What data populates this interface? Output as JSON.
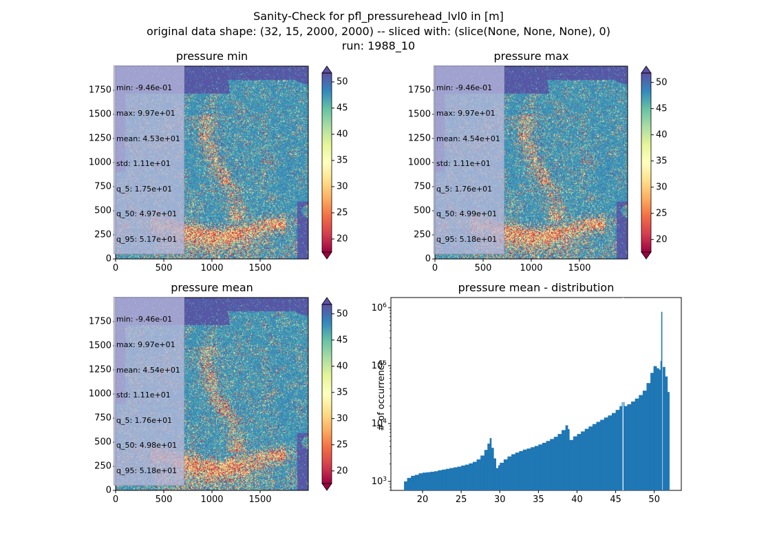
{
  "figure": {
    "title_lines": [
      "Sanity-Check for pfl_pressurehead_lvl0 in [m]",
      "original data shape: (32, 15, 2000, 2000) -- sliced with: (slice(None, None, None), 0)",
      "run: 1988_10"
    ]
  },
  "colors": {
    "hist_bar": "#1f77b4",
    "map_background": "#5e4fa2",
    "colormap": "Spectral"
  },
  "chart_data": [
    {
      "type": "heatmap",
      "title": "pressure min",
      "colormap": "Spectral",
      "clim": [
        17.5,
        51.7
      ],
      "xlim": [
        0,
        2000
      ],
      "ylim": [
        0,
        2000
      ],
      "xticks": [
        "0",
        "500",
        "1000",
        "1500"
      ],
      "yticks": [
        "0",
        "250",
        "500",
        "750",
        "1000",
        "1250",
        "1500",
        "1750"
      ],
      "colorbar_ticks": [
        "20",
        "25",
        "30",
        "35",
        "40",
        "45",
        "50"
      ],
      "stats": [
        "min: -9.46e-01",
        "max: 9.97e+01",
        "mean: 4.53e+01",
        "std: 1.11e+01",
        "q_5: 1.75e+01",
        "q_50: 4.97e+01",
        "q_95: 5.17e+01"
      ]
    },
    {
      "type": "heatmap",
      "title": "pressure max",
      "colormap": "Spectral",
      "clim": [
        17.6,
        51.8
      ],
      "xlim": [
        0,
        2000
      ],
      "ylim": [
        0,
        2000
      ],
      "xticks": [
        "0",
        "500",
        "1000",
        "1500"
      ],
      "yticks": [
        "0",
        "250",
        "500",
        "750",
        "1000",
        "1250",
        "1500",
        "1750"
      ],
      "colorbar_ticks": [
        "20",
        "25",
        "30",
        "35",
        "40",
        "45",
        "50"
      ],
      "stats": [
        "min: -9.46e-01",
        "max: 9.97e+01",
        "mean: 4.54e+01",
        "std: 1.11e+01",
        "q_5: 1.76e+01",
        "q_50: 4.99e+01",
        "q_95: 5.18e+01"
      ]
    },
    {
      "type": "heatmap",
      "title": "pressure mean",
      "colormap": "Spectral",
      "clim": [
        17.6,
        51.8
      ],
      "xlim": [
        0,
        2000
      ],
      "ylim": [
        0,
        2000
      ],
      "xticks": [
        "0",
        "500",
        "1000",
        "1500"
      ],
      "yticks": [
        "0",
        "250",
        "500",
        "750",
        "1000",
        "1250",
        "1500",
        "1750"
      ],
      "colorbar_ticks": [
        "20",
        "25",
        "30",
        "35",
        "40",
        "45",
        "50"
      ],
      "stats": [
        "min: -9.46e-01",
        "max: 9.97e+01",
        "mean: 4.54e+01",
        "std: 1.11e+01",
        "q_5: 1.76e+01",
        "q_50: 4.98e+01",
        "q_95: 5.18e+01"
      ]
    },
    {
      "type": "bar",
      "title": "pressure mean - distribution",
      "ylabel": "# of occurrence",
      "yscale": "log",
      "xlim": [
        15.9,
        53.5
      ],
      "ylim": [
        700,
        1500000
      ],
      "xticks": [
        20,
        25,
        30,
        35,
        40,
        45,
        50
      ],
      "yticks": [
        {
          "value": 1000,
          "label": "10^3"
        },
        {
          "value": 10000,
          "label": "10^4"
        },
        {
          "value": 100000,
          "label": "10^5"
        },
        {
          "value": 1000000,
          "label": "10^6"
        }
      ],
      "bin_width": 0.17,
      "bins": [
        [
          17.6,
          1000
        ],
        [
          18.0,
          1150
        ],
        [
          18.5,
          1250
        ],
        [
          19.0,
          1300
        ],
        [
          19.5,
          1380
        ],
        [
          20.0,
          1420
        ],
        [
          20.5,
          1440
        ],
        [
          21.0,
          1470
        ],
        [
          21.5,
          1500
        ],
        [
          22.0,
          1560
        ],
        [
          22.5,
          1600
        ],
        [
          23.0,
          1650
        ],
        [
          23.5,
          1700
        ],
        [
          24.0,
          1750
        ],
        [
          24.5,
          1800
        ],
        [
          25.0,
          1880
        ],
        [
          25.5,
          1950
        ],
        [
          26.0,
          2050
        ],
        [
          26.5,
          2180
        ],
        [
          27.0,
          2400
        ],
        [
          27.5,
          2800
        ],
        [
          28.0,
          3500
        ],
        [
          28.4,
          4500
        ],
        [
          28.7,
          5600
        ],
        [
          28.9,
          3800
        ],
        [
          29.2,
          2500
        ],
        [
          29.5,
          1700
        ],
        [
          29.8,
          1900
        ],
        [
          30.0,
          2100
        ],
        [
          30.5,
          2400
        ],
        [
          31.0,
          2700
        ],
        [
          31.5,
          2950
        ],
        [
          32.0,
          3150
        ],
        [
          32.5,
          3350
        ],
        [
          33.0,
          3550
        ],
        [
          33.5,
          3700
        ],
        [
          34.0,
          3900
        ],
        [
          34.5,
          4100
        ],
        [
          35.0,
          4350
        ],
        [
          35.5,
          4650
        ],
        [
          36.0,
          5000
        ],
        [
          36.5,
          5400
        ],
        [
          37.0,
          5900
        ],
        [
          37.5,
          6600
        ],
        [
          38.0,
          7700
        ],
        [
          38.5,
          9300
        ],
        [
          38.8,
          8000
        ],
        [
          39.0,
          5200
        ],
        [
          39.5,
          6000
        ],
        [
          40.0,
          6600
        ],
        [
          40.5,
          7300
        ],
        [
          41.0,
          8100
        ],
        [
          41.5,
          8900
        ],
        [
          42.0,
          9800
        ],
        [
          42.5,
          10700
        ],
        [
          43.0,
          11600
        ],
        [
          43.5,
          12700
        ],
        [
          44.0,
          13800
        ],
        [
          44.5,
          15200
        ],
        [
          45.0,
          17200
        ],
        [
          45.5,
          20000
        ],
        [
          45.8,
          23500
        ],
        [
          46.1,
          20000
        ],
        [
          46.5,
          21500
        ],
        [
          47.0,
          24000
        ],
        [
          47.5,
          27000
        ],
        [
          48.0,
          31000
        ],
        [
          48.5,
          37000
        ],
        [
          49.0,
          50000
        ],
        [
          49.5,
          75000
        ],
        [
          49.9,
          98000
        ],
        [
          50.3,
          90000
        ],
        [
          50.6,
          85000
        ],
        [
          50.8,
          120000
        ],
        [
          50.9,
          850000
        ],
        [
          51.1,
          95000
        ],
        [
          51.4,
          65000
        ],
        [
          51.7,
          35000
        ]
      ]
    }
  ]
}
